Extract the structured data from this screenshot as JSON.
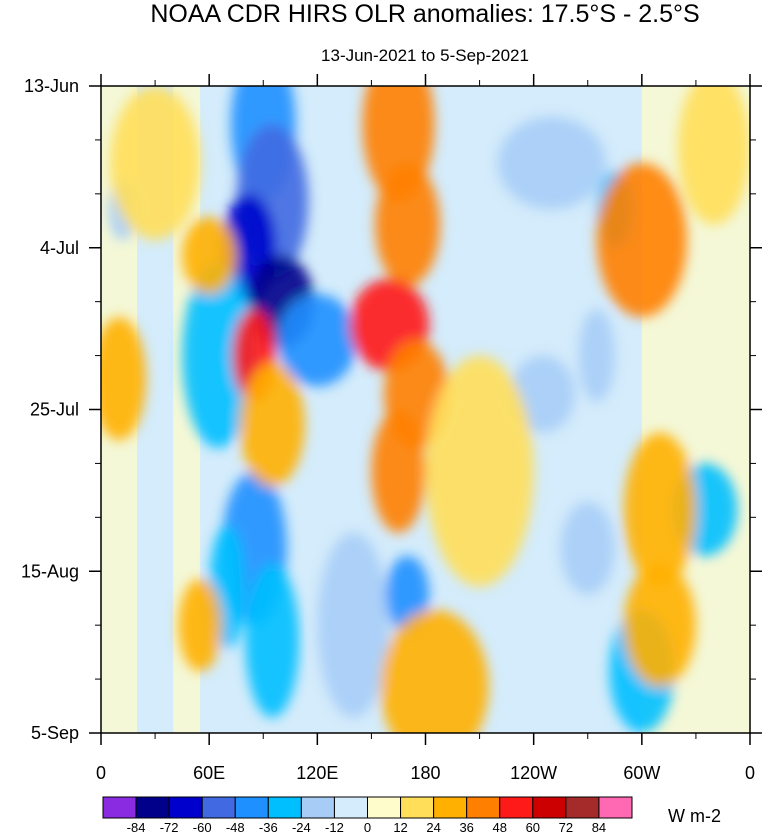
{
  "chart_data": {
    "type": "heatmap",
    "title": "NOAA CDR HIRS OLR anomalies: 17.5°S - 2.5°S",
    "subtitle": "13-Jun-2021 to 5-Sep-2021",
    "x_tick_labels": [
      "0",
      "60E",
      "120E",
      "180",
      "120W",
      "60W",
      "0"
    ],
    "x_range": [
      0,
      360
    ],
    "y_tick_labels": [
      "13-Jun",
      "4-Jul",
      "25-Jul",
      "15-Aug",
      "5-Sep"
    ],
    "y_range_days": [
      0,
      84
    ],
    "colorbar": {
      "units": "W m-2",
      "labels": [
        "-84",
        "-72",
        "-60",
        "-48",
        "-36",
        "-24",
        "-12",
        "0",
        "12",
        "24",
        "36",
        "48",
        "60",
        "72",
        "84"
      ],
      "colors": [
        "#8a2be2",
        "#00008b",
        "#0000cd",
        "#4169e1",
        "#1e90ff",
        "#00bfff",
        "#a7cdf7",
        "#d4ecfb",
        "#fffccb",
        "#ffde59",
        "#ffb000",
        "#ff7f00",
        "#ff1a1a",
        "#cc0000",
        "#a52a2a",
        "#ff69b4"
      ]
    },
    "anomaly_features": [
      {
        "lon": 90,
        "day": 5,
        "lon_w": 18,
        "day_w": 10,
        "value": -48
      },
      {
        "lon": 95,
        "day": 15,
        "lon_w": 20,
        "day_w": 10,
        "value": -60
      },
      {
        "lon": 82,
        "day": 21,
        "lon_w": 15,
        "day_w": 7,
        "value": -72
      },
      {
        "lon": 100,
        "day": 28,
        "lon_w": 18,
        "day_w": 6,
        "value": -84
      },
      {
        "lon": 120,
        "day": 33,
        "lon_w": 22,
        "day_w": 6,
        "value": -48
      },
      {
        "lon": 65,
        "day": 35,
        "lon_w": 20,
        "day_w": 12,
        "value": -36
      },
      {
        "lon": 85,
        "day": 60,
        "lon_w": 18,
        "day_w": 10,
        "value": -48
      },
      {
        "lon": 70,
        "day": 65,
        "lon_w": 10,
        "day_w": 8,
        "value": -36
      },
      {
        "lon": 95,
        "day": 72,
        "lon_w": 15,
        "day_w": 10,
        "value": -36
      },
      {
        "lon": 140,
        "day": 70,
        "lon_w": 20,
        "day_w": 12,
        "value": -24
      },
      {
        "lon": 170,
        "day": 66,
        "lon_w": 12,
        "day_w": 5,
        "value": -48
      },
      {
        "lon": 12,
        "day": 16,
        "lon_w": 8,
        "day_w": 4,
        "value": -24
      },
      {
        "lon": 250,
        "day": 10,
        "lon_w": 30,
        "day_w": 6,
        "value": -24
      },
      {
        "lon": 285,
        "day": 16,
        "lon_w": 10,
        "day_w": 5,
        "value": -36
      },
      {
        "lon": 275,
        "day": 35,
        "lon_w": 10,
        "day_w": 6,
        "value": -24
      },
      {
        "lon": 245,
        "day": 40,
        "lon_w": 18,
        "day_w": 5,
        "value": -24
      },
      {
        "lon": 335,
        "day": 55,
        "lon_w": 18,
        "day_w": 6,
        "value": -36
      },
      {
        "lon": 270,
        "day": 60,
        "lon_w": 15,
        "day_w": 6,
        "value": -24
      },
      {
        "lon": 300,
        "day": 76,
        "lon_w": 18,
        "day_w": 8,
        "value": -36
      },
      {
        "lon": 165,
        "day": 5,
        "lon_w": 20,
        "day_w": 10,
        "value": 36
      },
      {
        "lon": 170,
        "day": 18,
        "lon_w": 18,
        "day_w": 8,
        "value": 36
      },
      {
        "lon": 160,
        "day": 31,
        "lon_w": 22,
        "day_w": 6,
        "value": 48
      },
      {
        "lon": 175,
        "day": 40,
        "lon_w": 18,
        "day_w": 7,
        "value": 36
      },
      {
        "lon": 165,
        "day": 50,
        "lon_w": 15,
        "day_w": 8,
        "value": 36
      },
      {
        "lon": 185,
        "day": 78,
        "lon_w": 30,
        "day_w": 10,
        "value": 24
      },
      {
        "lon": 85,
        "day": 35,
        "lon_w": 12,
        "day_w": 6,
        "value": 48
      },
      {
        "lon": 95,
        "day": 44,
        "lon_w": 18,
        "day_w": 8,
        "value": 24
      },
      {
        "lon": 60,
        "day": 22,
        "lon_w": 15,
        "day_w": 5,
        "value": 24
      },
      {
        "lon": 55,
        "day": 70,
        "lon_w": 12,
        "day_w": 6,
        "value": 24
      },
      {
        "lon": 300,
        "day": 20,
        "lon_w": 25,
        "day_w": 10,
        "value": 36
      },
      {
        "lon": 310,
        "day": 55,
        "lon_w": 20,
        "day_w": 10,
        "value": 24
      },
      {
        "lon": 310,
        "day": 70,
        "lon_w": 20,
        "day_w": 8,
        "value": 24
      },
      {
        "lon": 10,
        "day": 38,
        "lon_w": 15,
        "day_w": 8,
        "value": 24
      },
      {
        "lon": 340,
        "day": 8,
        "lon_w": 20,
        "day_w": 10,
        "value": 12
      },
      {
        "lon": 30,
        "day": 10,
        "lon_w": 25,
        "day_w": 10,
        "value": 12
      },
      {
        "lon": 210,
        "day": 50,
        "lon_w": 30,
        "day_w": 15,
        "value": 12
      }
    ]
  }
}
